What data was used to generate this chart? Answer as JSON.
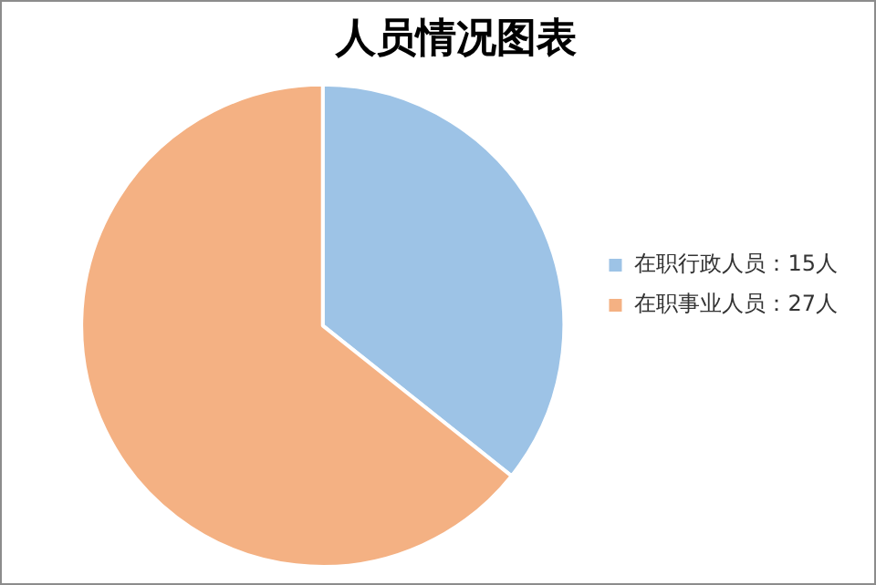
{
  "chart_data": {
    "type": "pie",
    "title": "人员情况图表",
    "categories": [
      "在职行政人员：15人",
      "在职事业人员：27人"
    ],
    "values": [
      15,
      27
    ],
    "colors": [
      "#9dc3e6",
      "#f4b183"
    ],
    "legend": "right"
  }
}
